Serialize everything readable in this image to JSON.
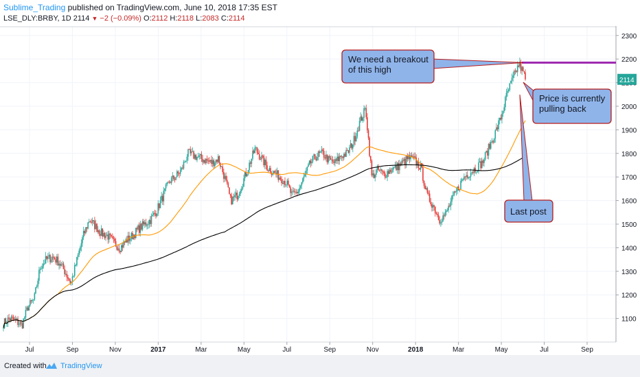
{
  "header": {
    "author": "Sublime_Trading",
    "published_text": " published on TradingView.com, June 10, 2018 17:35 EST",
    "symbol": "LSE_DLY:BRBY, 1D",
    "last": "2114",
    "change": "−2 (−0.09%)",
    "o_label": "O:",
    "o_value": "2112",
    "h_label": "H:",
    "h_value": "2118",
    "l_label": "L:",
    "l_value": "2083",
    "c_label": "C:",
    "c_value": "2114"
  },
  "footer": {
    "created_with": "Created with",
    "brand": "TradingView"
  },
  "annotations": {
    "breakout": [
      "We need a breakout",
      "of this high"
    ],
    "pullback": [
      "Price is currently",
      "pulling back"
    ],
    "last_post": "Last post"
  },
  "chart_data": {
    "type": "candlestick",
    "symbol": "LSE_DLY:BRBY",
    "interval": "1D",
    "ylim": [
      1000,
      2340
    ],
    "yticks": [
      1100,
      1200,
      1300,
      1400,
      1500,
      1600,
      1700,
      1800,
      1900,
      2000,
      2100,
      2200,
      2300
    ],
    "xticks": [
      "Jul",
      "Sep",
      "Nov",
      "2017",
      "Mar",
      "May",
      "Jul",
      "Sep",
      "Nov",
      "2018",
      "Mar",
      "May",
      "Jul",
      "Sep"
    ],
    "last_price": 2114,
    "resistance_level": 2185,
    "price_path_weekly_approx": [
      1080,
      1100,
      1090,
      1070,
      1150,
      1180,
      1320,
      1350,
      1360,
      1340,
      1300,
      1250,
      1350,
      1450,
      1520,
      1490,
      1460,
      1450,
      1420,
      1400,
      1430,
      1450,
      1480,
      1500,
      1520,
      1560,
      1620,
      1680,
      1700,
      1730,
      1800,
      1790,
      1780,
      1770,
      1760,
      1780,
      1700,
      1600,
      1620,
      1680,
      1750,
      1820,
      1780,
      1740,
      1720,
      1700,
      1680,
      1620,
      1640,
      1700,
      1760,
      1790,
      1800,
      1770,
      1760,
      1790,
      1800,
      1850,
      1930,
      1990,
      1700,
      1730,
      1710,
      1730,
      1740,
      1760,
      1780,
      1770,
      1740,
      1620,
      1580,
      1520,
      1540,
      1600,
      1650,
      1700,
      1720,
      1740,
      1760,
      1820,
      1880,
      1950,
      2050,
      2120,
      2180,
      2120
    ],
    "series": [
      {
        "name": "",
        "color": "#ff9800",
        "type": "moving_average"
      },
      {
        "name": "",
        "color": "#000000",
        "type": "moving_average"
      }
    ],
    "colors": {
      "up": "#26a69a",
      "down": "#e53935",
      "resistance": "#9c27b0",
      "callout": "#8fb4ea",
      "callout_border": "#b71c1c"
    }
  }
}
